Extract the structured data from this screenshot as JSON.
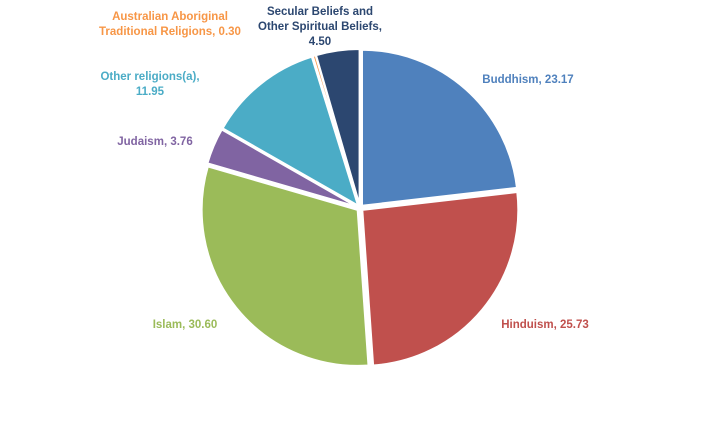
{
  "chart_data": {
    "type": "pie",
    "categories": [
      "Buddhism",
      "Hinduism",
      "Islam",
      "Judaism",
      "Other religions(a)",
      "Australian Aboriginal Traditional Religions",
      "Secular Beliefs and Other Spiritual Beliefs"
    ],
    "values": [
      23.17,
      25.73,
      30.6,
      3.76,
      11.95,
      0.3,
      4.5
    ],
    "value_labels": [
      "23.17",
      "25.73",
      "30.60",
      "3.76",
      "11.95",
      "0.30",
      "4.50"
    ],
    "colors": [
      "#4f81bd",
      "#c0504d",
      "#9bbb59",
      "#8064a2",
      "#4bacc6",
      "#f79646",
      "#2c4770"
    ]
  }
}
